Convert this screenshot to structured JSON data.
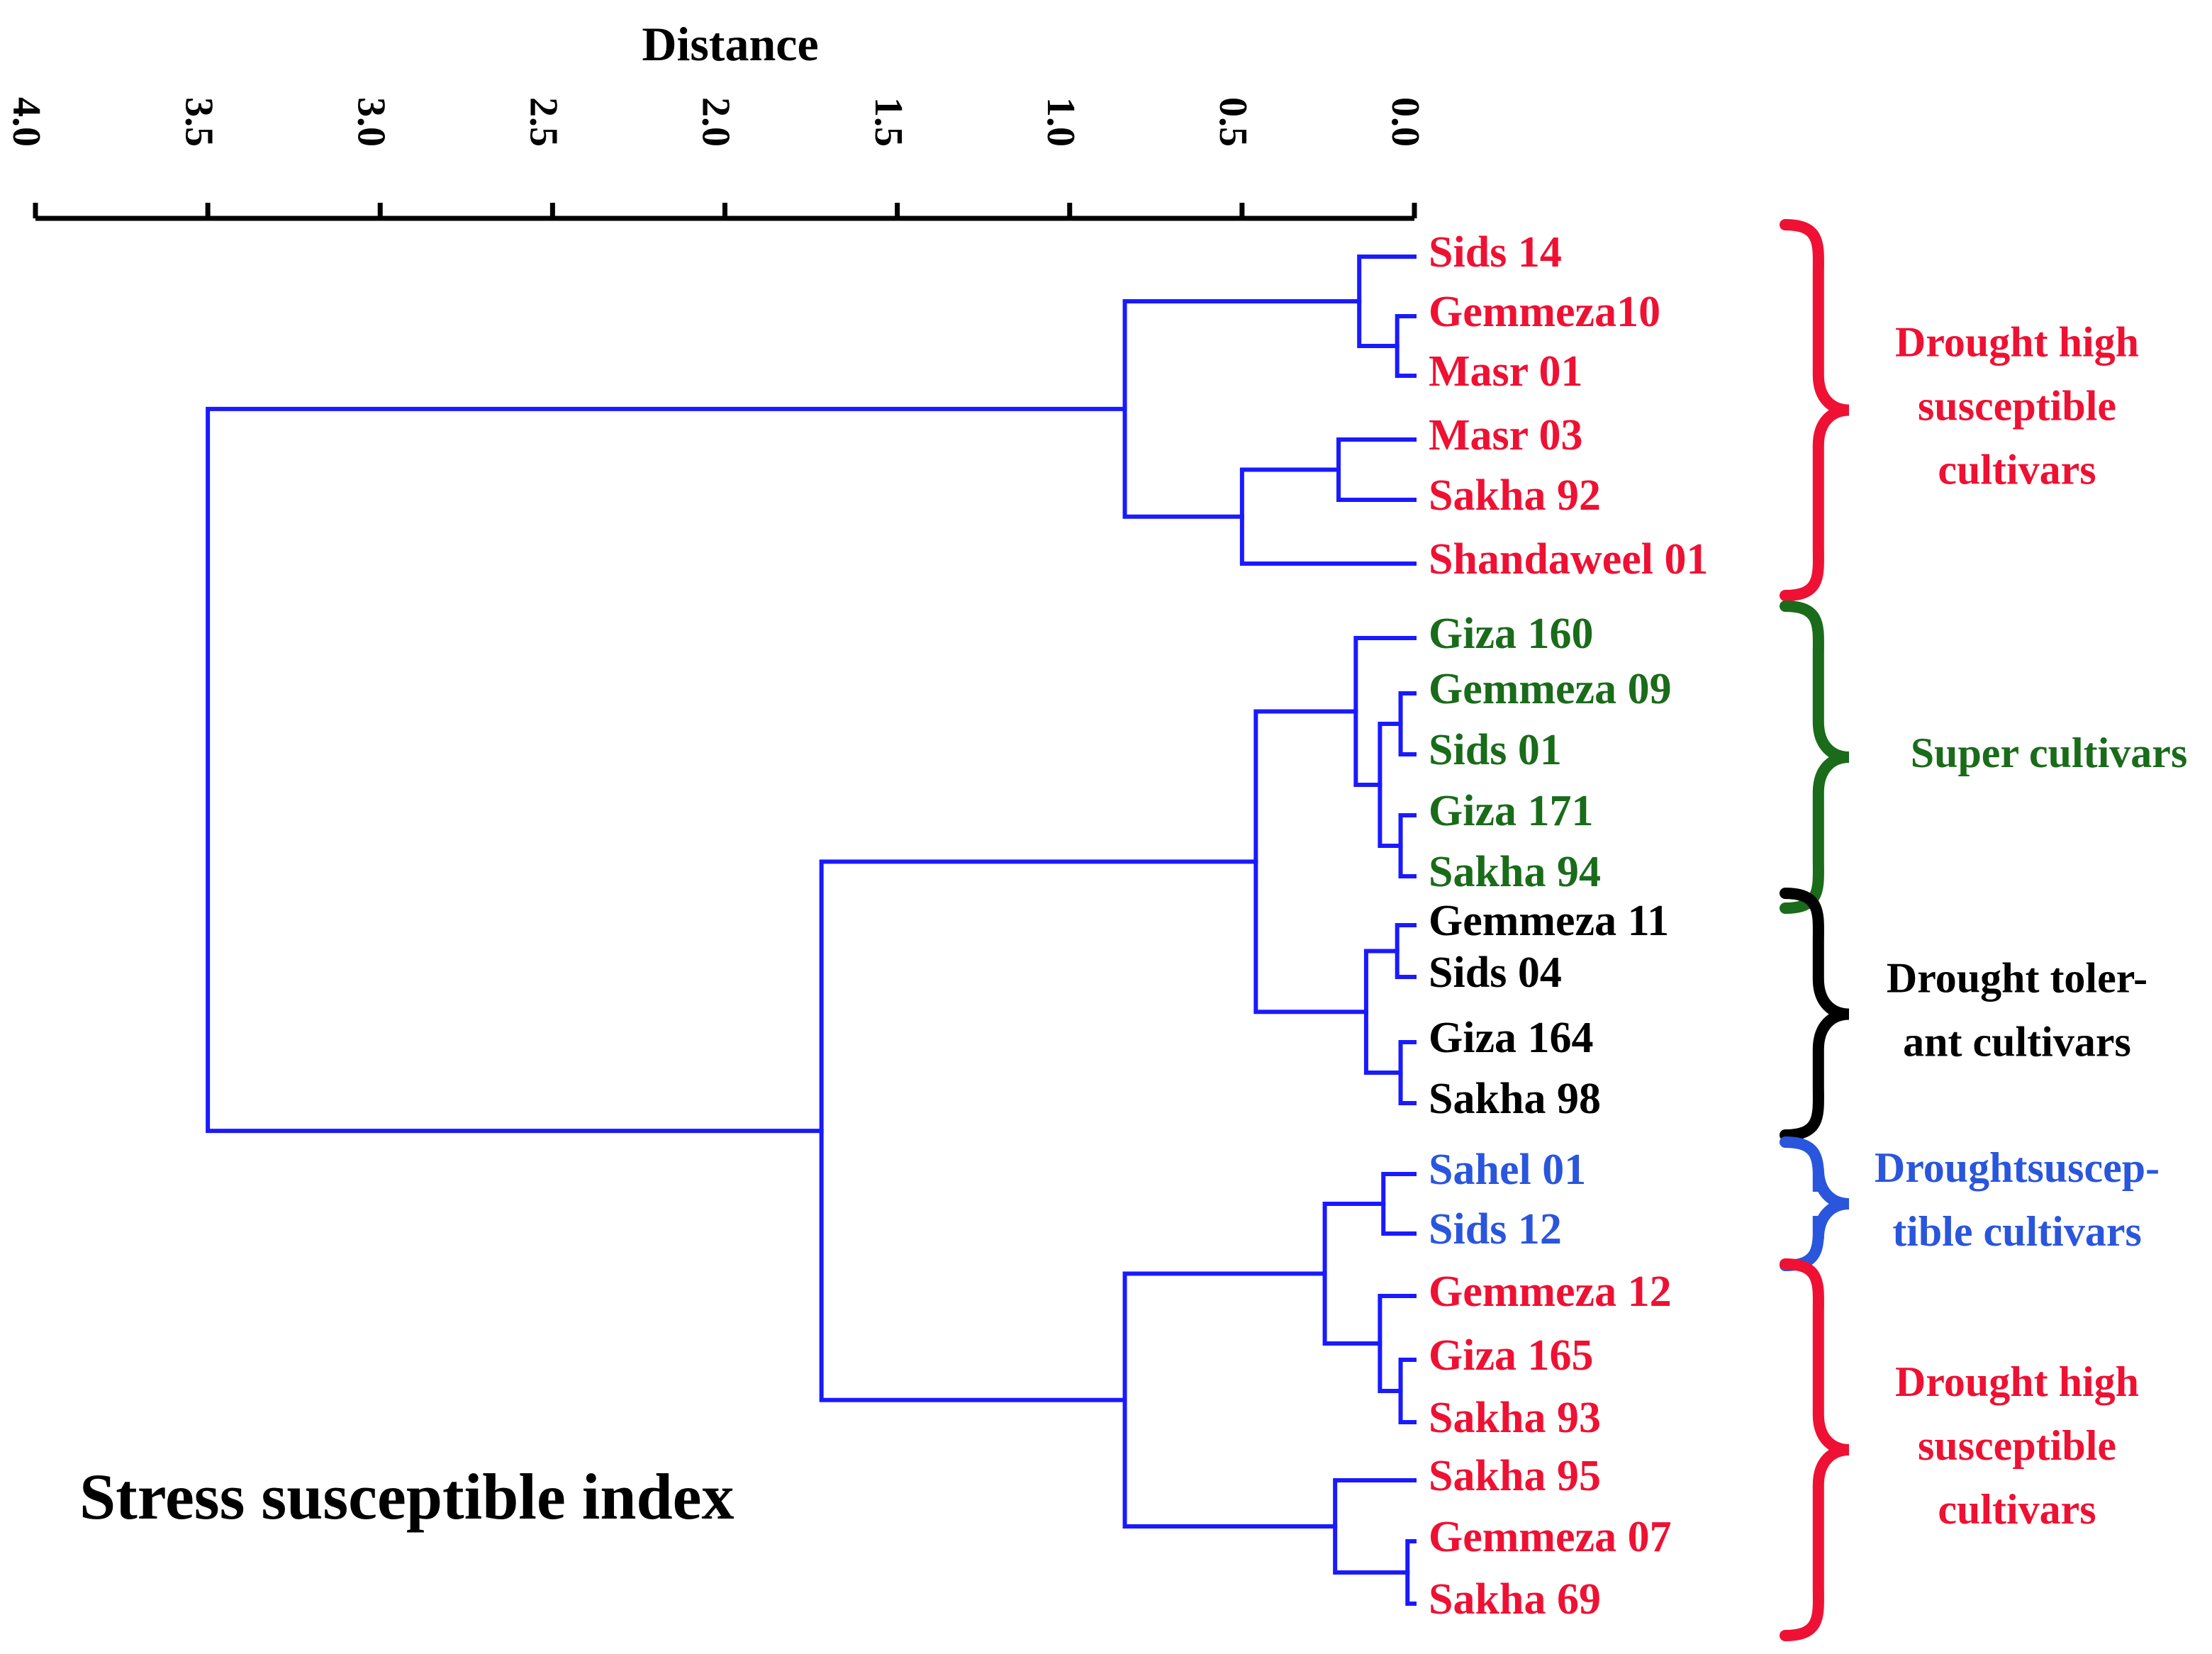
{
  "axis": {
    "title": "Distance",
    "ticks": [
      4.0,
      3.5,
      3.0,
      2.5,
      2.0,
      1.5,
      1.0,
      0.5,
      0.0
    ],
    "tick_labels": [
      "4.0",
      "3.5",
      "3.0",
      "2.5",
      "2.0",
      "1.5",
      "1.0",
      "0.5",
      "0.0"
    ],
    "range": [
      0.0,
      4.0
    ],
    "direction": "right-to-left"
  },
  "footer_title": "Stress susceptible index",
  "colors": {
    "branch": "#1a1aff",
    "high_susceptible": "#ee1133",
    "super": "#1a6b1a",
    "tolerant": "#000000",
    "susceptible": "#2a55dd"
  },
  "leaves": [
    {
      "label": "Sids 14",
      "group": "high_susceptible"
    },
    {
      "label": "Gemmeza10",
      "group": "high_susceptible"
    },
    {
      "label": "Masr 01",
      "group": "high_susceptible"
    },
    {
      "label": "Masr 03",
      "group": "high_susceptible"
    },
    {
      "label": "Sakha 92",
      "group": "high_susceptible"
    },
    {
      "label": "Shandaweel 01",
      "group": "high_susceptible"
    },
    {
      "label": "Giza 160",
      "group": "super"
    },
    {
      "label": "Gemmeza 09",
      "group": "super"
    },
    {
      "label": "Sids 01",
      "group": "super"
    },
    {
      "label": "Giza 171",
      "group": "super"
    },
    {
      "label": "Sakha 94",
      "group": "super"
    },
    {
      "label": "Gemmeza 11",
      "group": "tolerant"
    },
    {
      "label": "Sids 04",
      "group": "tolerant"
    },
    {
      "label": "Giza 164",
      "group": "tolerant"
    },
    {
      "label": "Sakha 98",
      "group": "tolerant"
    },
    {
      "label": "Sahel 01",
      "group": "susceptible"
    },
    {
      "label": "Sids 12",
      "group": "susceptible"
    },
    {
      "label": "Gemmeza 12",
      "group": "high_susceptible"
    },
    {
      "label": "Giza 165",
      "group": "high_susceptible"
    },
    {
      "label": "Sakha 93",
      "group": "high_susceptible"
    },
    {
      "label": "Sakha 95",
      "group": "high_susceptible"
    },
    {
      "label": "Gemmeza 07",
      "group": "high_susceptible"
    },
    {
      "label": "Sakha 69",
      "group": "high_susceptible"
    }
  ],
  "merges": [
    {
      "id": "n1",
      "children": [
        1,
        2
      ],
      "height": 0.05
    },
    {
      "id": "n2",
      "children": [
        0,
        "n1"
      ],
      "height": 0.16
    },
    {
      "id": "n3",
      "children": [
        3,
        4
      ],
      "height": 0.22
    },
    {
      "id": "n4",
      "children": [
        "n3",
        5
      ],
      "height": 0.5
    },
    {
      "id": "n5",
      "children": [
        "n2",
        "n4"
      ],
      "height": 0.84
    },
    {
      "id": "n6",
      "children": [
        7,
        8
      ],
      "height": 0.04
    },
    {
      "id": "n7",
      "children": [
        9,
        10
      ],
      "height": 0.04
    },
    {
      "id": "n8",
      "children": [
        "n6",
        "n7"
      ],
      "height": 0.1
    },
    {
      "id": "n9",
      "children": [
        6,
        "n8"
      ],
      "height": 0.17
    },
    {
      "id": "n10",
      "children": [
        11,
        12
      ],
      "height": 0.05
    },
    {
      "id": "n11",
      "children": [
        13,
        14
      ],
      "height": 0.04
    },
    {
      "id": "n12",
      "children": [
        "n10",
        "n11"
      ],
      "height": 0.14
    },
    {
      "id": "n13",
      "children": [
        "n9",
        "n12"
      ],
      "height": 0.46
    },
    {
      "id": "n14",
      "children": [
        15,
        16
      ],
      "height": 0.09
    },
    {
      "id": "n15",
      "children": [
        18,
        19
      ],
      "height": 0.04
    },
    {
      "id": "n16",
      "children": [
        17,
        "n15"
      ],
      "height": 0.1
    },
    {
      "id": "n17",
      "children": [
        "n14",
        "n16"
      ],
      "height": 0.26
    },
    {
      "id": "n18",
      "children": [
        21,
        22
      ],
      "height": 0.02
    },
    {
      "id": "n19",
      "children": [
        20,
        "n18"
      ],
      "height": 0.23
    },
    {
      "id": "n20",
      "children": [
        "n17",
        "n19"
      ],
      "height": 0.84
    },
    {
      "id": "n21",
      "children": [
        "n13",
        "n20"
      ],
      "height": 1.72
    },
    {
      "id": "n22",
      "children": [
        "n5",
        "n21"
      ],
      "height": 3.5
    }
  ],
  "groups": [
    {
      "lines": [
        "Drought high",
        "susceptible",
        "cultivars"
      ],
      "color_key": "high_susceptible",
      "from": 0,
      "to": 5
    },
    {
      "lines": [
        "Super cultivars"
      ],
      "color_key": "super",
      "from": 6,
      "to": 10
    },
    {
      "lines": [
        "Drought toler-",
        "ant cultivars"
      ],
      "color_key": "tolerant",
      "from": 11,
      "to": 14
    },
    {
      "lines": [
        "Droughtsuscep-",
        "tible cultivars"
      ],
      "color_key": "susceptible",
      "from": 15,
      "to": 16
    },
    {
      "lines": [
        "Drought high",
        "susceptible",
        "cultivars"
      ],
      "color_key": "high_susceptible",
      "from": 17,
      "to": 22
    }
  ]
}
